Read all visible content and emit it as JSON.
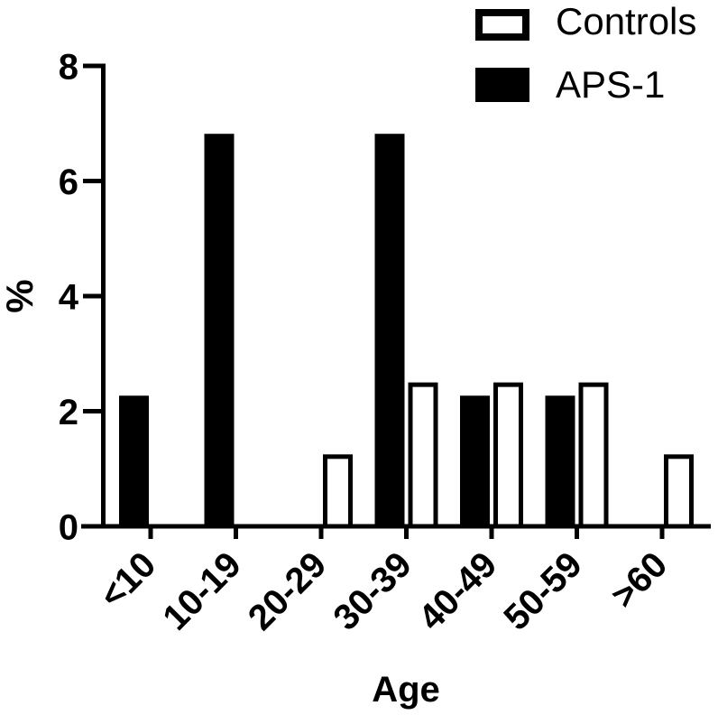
{
  "figure": {
    "background": "#ffffff",
    "foreground": "#000000"
  },
  "chart_data": {
    "type": "bar",
    "title": "",
    "xlabel": "Age",
    "ylabel": "%",
    "categories": [
      "<10",
      "10-19",
      "20-29",
      "30-39",
      "40-49",
      "50-59",
      ">60"
    ],
    "series": [
      {
        "name": "Controls",
        "style": "open",
        "fill": "#ffffff",
        "stroke": "#000000",
        "values": [
          0,
          0,
          1.25,
          2.5,
          2.5,
          2.5,
          1.25
        ]
      },
      {
        "name": "APS-1",
        "style": "filled",
        "fill": "#000000",
        "stroke": "#000000",
        "values": [
          2.27,
          6.82,
          0,
          6.82,
          2.27,
          2.27,
          0
        ]
      }
    ],
    "ylim": [
      0,
      8
    ],
    "yticks": [
      0,
      2,
      4,
      6,
      8
    ],
    "grid": false,
    "legend_position": "top-right",
    "group_order": [
      "APS-1",
      "Controls"
    ]
  }
}
